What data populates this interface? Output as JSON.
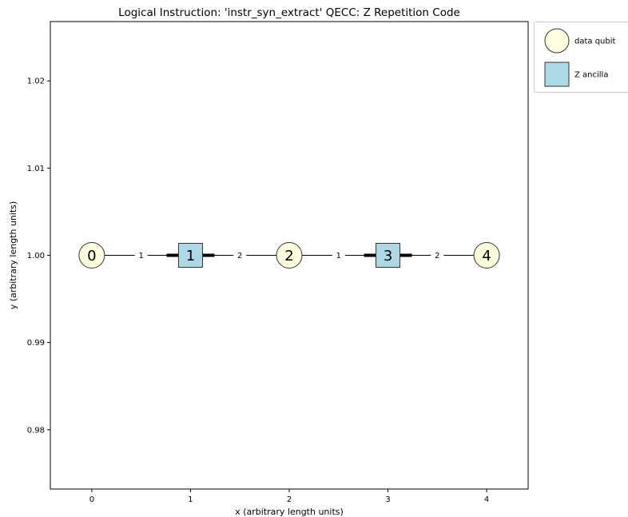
{
  "chart_data": {
    "type": "scatter",
    "title": "Logical Instruction: 'instr_syn_extract'  QECC: Z Repetition Code",
    "xlabel": "x (arbitrary length units)",
    "ylabel": "y (arbitrary length units)",
    "xlim": [
      -0.42,
      4.42
    ],
    "ylim": [
      0.9732,
      1.0268
    ],
    "xticks": [
      "0",
      "1",
      "2",
      "3",
      "4"
    ],
    "yticks": [
      "0.98",
      "0.99",
      "1.00",
      "1.01",
      "1.02"
    ],
    "grid": false,
    "legend_position": "outside-top-right",
    "nodes": [
      {
        "id": "0",
        "kind": "data",
        "x": 0,
        "y": 1.0
      },
      {
        "id": "1",
        "kind": "ancilla",
        "x": 1,
        "y": 1.0
      },
      {
        "id": "2",
        "kind": "data",
        "x": 2,
        "y": 1.0
      },
      {
        "id": "3",
        "kind": "ancilla",
        "x": 3,
        "y": 1.0
      },
      {
        "id": "4",
        "kind": "data",
        "x": 4,
        "y": 1.0
      }
    ],
    "edges": [
      {
        "from": 0,
        "to": 1,
        "label": "1"
      },
      {
        "from": 1,
        "to": 2,
        "label": "2"
      },
      {
        "from": 2,
        "to": 3,
        "label": "1"
      },
      {
        "from": 3,
        "to": 4,
        "label": "2"
      }
    ],
    "legend": [
      {
        "kind": "data",
        "label": "data qubit"
      },
      {
        "kind": "ancilla",
        "label": "Z ancilla"
      }
    ],
    "colors": {
      "data": "#ffffe0",
      "ancilla": "#add8e6",
      "outline": "#333333"
    }
  }
}
